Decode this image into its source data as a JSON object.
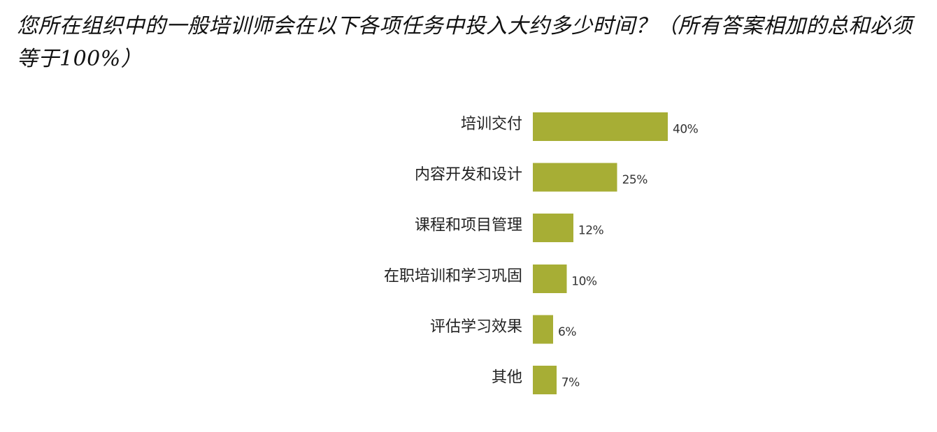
{
  "title": "您所在组织中的一般培训师会在以下各项任务中投入大约多少时间？（所有答案相加的总和必须等于100%）",
  "colors": {
    "bar": "#a7ae35",
    "text": "#222222"
  },
  "chart_data": {
    "type": "bar",
    "orientation": "horizontal",
    "categories": [
      "培训交付",
      "内容开发和设计",
      "课程和项目管理",
      "在职培训和学习巩固",
      "评估学习效果",
      "其他"
    ],
    "values": [
      40,
      25,
      12,
      10,
      6,
      7
    ],
    "value_labels": [
      "40%",
      "25%",
      "12%",
      "10%",
      "6%",
      "7%"
    ],
    "unit": "%",
    "xlim": [
      0,
      40
    ],
    "grid": false,
    "legend": "none"
  }
}
